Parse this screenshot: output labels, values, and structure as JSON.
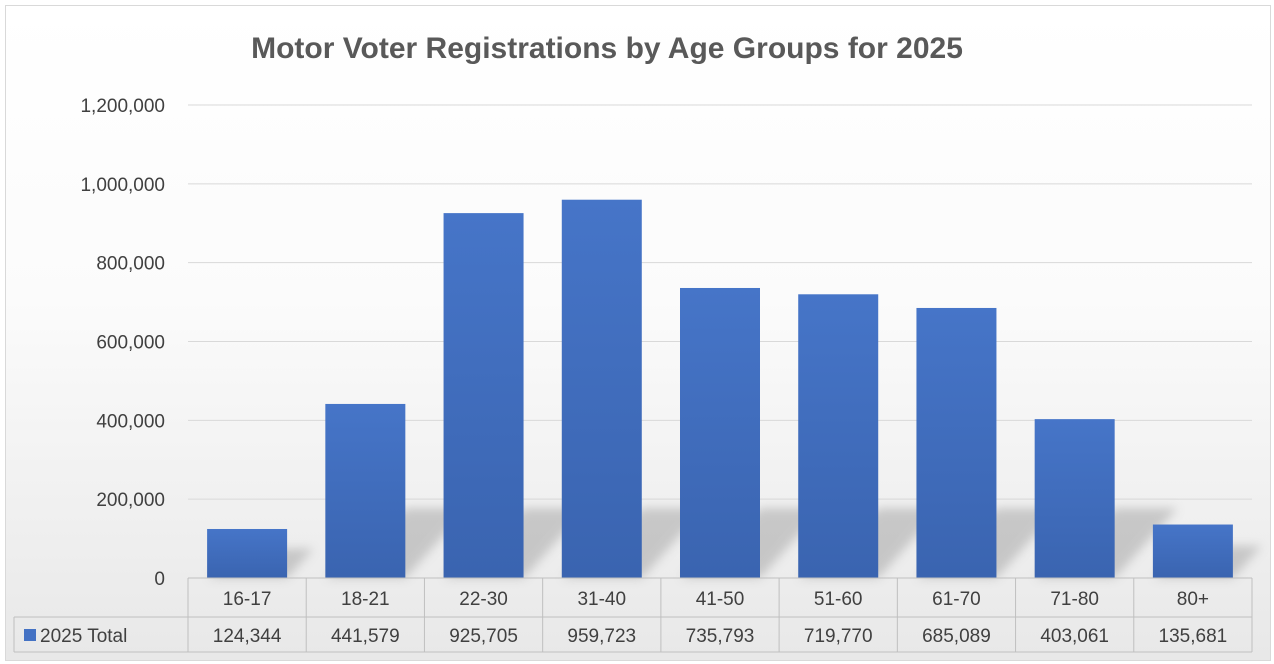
{
  "chart_data": {
    "type": "bar",
    "title": "Motor Voter Registrations by Age Groups for 2025",
    "xlabel": "",
    "ylabel": "",
    "categories": [
      "16-17",
      "18-21",
      "22-30",
      "31-40",
      "41-50",
      "51-60",
      "61-70",
      "71-80",
      "80+"
    ],
    "series": [
      {
        "name": "2025 Total",
        "values": [
          124344,
          441579,
          925705,
          959723,
          735793,
          719770,
          685089,
          403061,
          135681
        ],
        "value_labels": [
          "124,344",
          "441,579",
          "925,705",
          "959,723",
          "735,793",
          "719,770",
          "685,089",
          "403,061",
          "135,681"
        ]
      }
    ],
    "ylim": [
      0,
      1200000
    ],
    "y_ticks": [
      0,
      200000,
      400000,
      600000,
      800000,
      1000000,
      1200000
    ],
    "y_tick_labels": [
      "0",
      "200,000",
      "400,000",
      "600,000",
      "800,000",
      "1,000,000",
      "1,200,000"
    ],
    "grid": true,
    "legend": "data-table",
    "data_table": true,
    "colors": {
      "bar": "#4472c4",
      "grid": "#d9d9d9",
      "text": "#404040",
      "title": "#595959"
    }
  }
}
